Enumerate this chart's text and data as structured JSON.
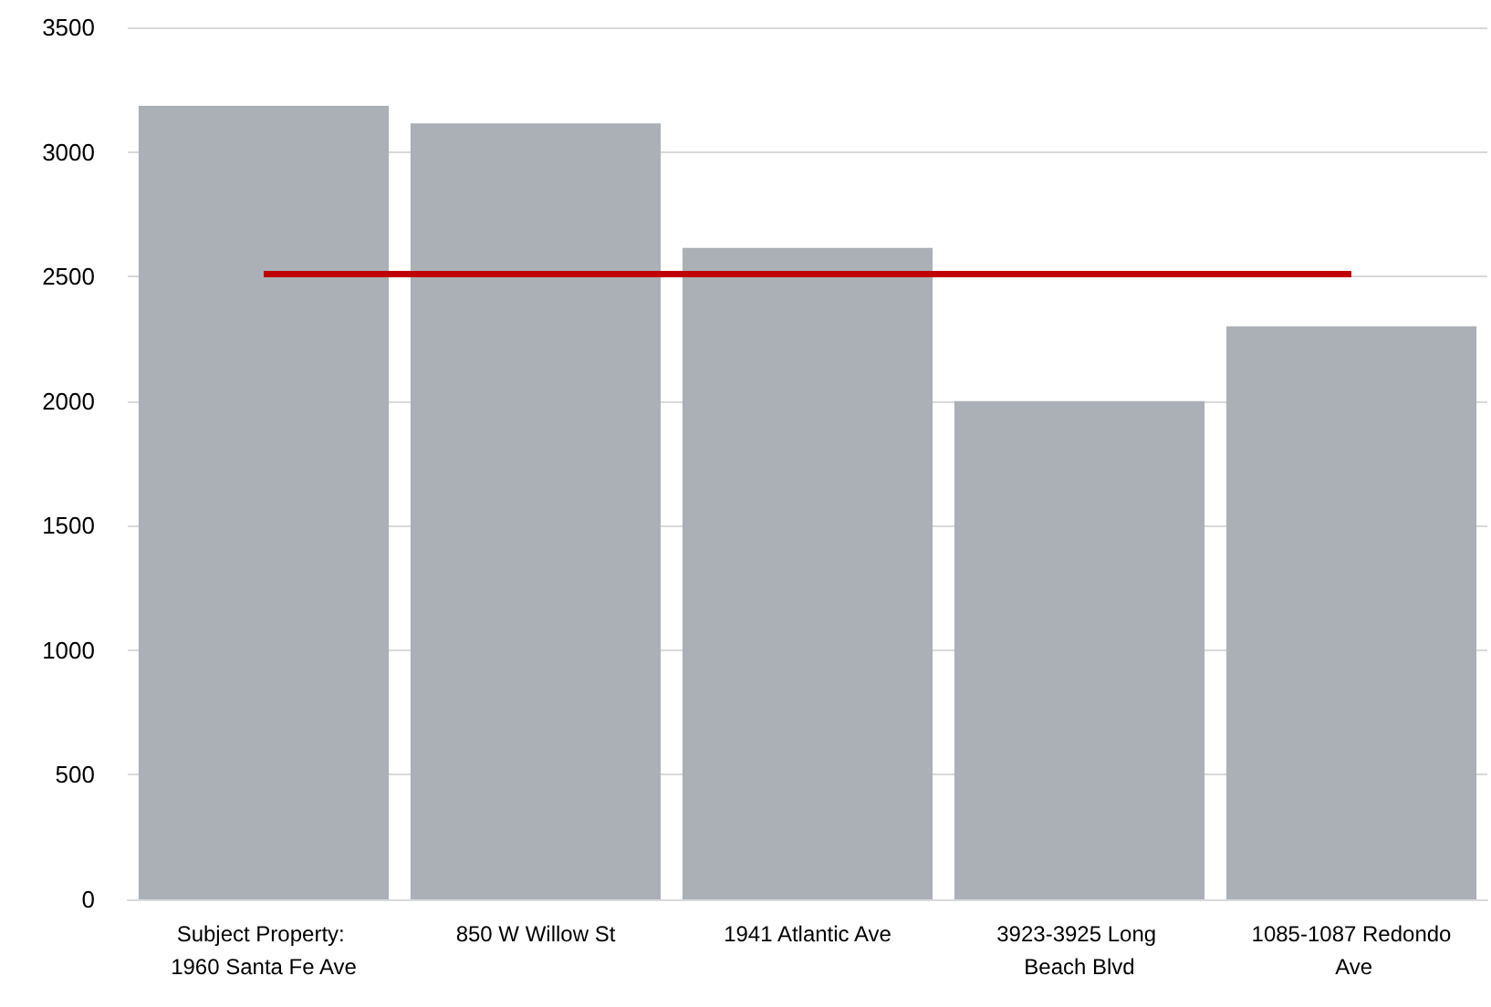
{
  "chart_data": {
    "type": "bar",
    "categories": [
      "Subject Property: 1960 Santa Fe Ave",
      "850 W Willow St",
      "1941 Atlantic Ave",
      "3923-3925 Long Beach Blvd",
      "1085-1087 Redondo Ave"
    ],
    "series": [
      {
        "color": "#aab0b6",
        "values": [
          3185,
          3115,
          2615,
          2000,
          2300
        ]
      },
      {
        "type": "line",
        "color": "#c00000",
        "marker": "none",
        "values": [
          2510,
          2510,
          2510,
          2510,
          2510
        ]
      }
    ],
    "ylim": [
      0,
      3500
    ],
    "yticks": [
      0,
      500,
      1000,
      1500,
      2000,
      2500,
      3000,
      3500
    ],
    "grid": "y"
  }
}
